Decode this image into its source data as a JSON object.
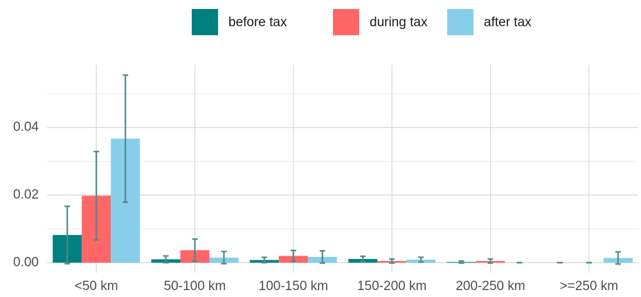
{
  "chart_data": {
    "type": "bar",
    "categories": [
      "<50 km",
      "50-100 km",
      "100-150 km",
      "150-200 km",
      "200-250 km",
      ">=250 km"
    ],
    "series": [
      {
        "name": "before tax",
        "color": "#008080",
        "values": [
          0.0082,
          0.001,
          0.0008,
          0.0011,
          0.0002,
          0
        ],
        "errors": [
          0.0085,
          0.001,
          0.0008,
          0.0008,
          0.0003,
          0
        ]
      },
      {
        "name": "during tax",
        "color": "#ff6666",
        "values": [
          0.0198,
          0.0037,
          0.002,
          0.0005,
          0.0005,
          0
        ],
        "errors": [
          0.0131,
          0.0033,
          0.0016,
          0.0006,
          0.0006,
          0
        ]
      },
      {
        "name": "after tax",
        "color": "#87ceeb",
        "values": [
          0.0367,
          0.0015,
          0.0017,
          0.0009,
          0,
          0.0014
        ],
        "errors": [
          0.0188,
          0.0018,
          0.0018,
          0.0007,
          0,
          0.0018
        ]
      }
    ],
    "error_color": "#4e8a8a",
    "ylim": [
      -0.003,
      0.0585
    ],
    "yticks": [
      {
        "value": 0,
        "label": "0.00"
      },
      {
        "value": 0.02,
        "label": "0.02"
      },
      {
        "value": 0.04,
        "label": "0.04"
      }
    ],
    "yminorticks": [
      0.01,
      0.03,
      0.05
    ],
    "grid": true,
    "legend": "top"
  }
}
